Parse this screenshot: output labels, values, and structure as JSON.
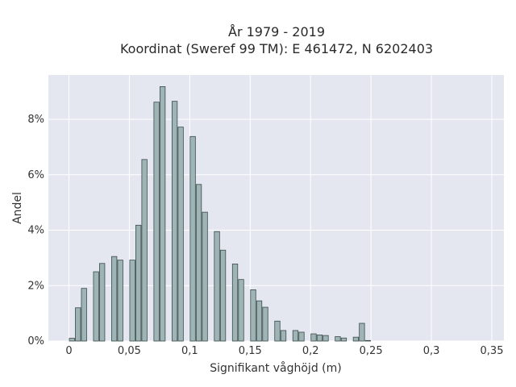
{
  "chart_data": {
    "type": "bar",
    "title": "År 1979 - 2019",
    "subtitle": "Koordinat (Sweref 99 TM): E 461472, N 6202403",
    "xlabel": "Signifikant våghöjd (m)",
    "ylabel": "Andel",
    "xlim": [
      -0.017,
      0.36
    ],
    "ylim": [
      0,
      9.6
    ],
    "grid": true,
    "bin_width": 0.005,
    "x_ticks": [
      {
        "value": 0,
        "label": "0"
      },
      {
        "value": 0.05,
        "label": "0,05"
      },
      {
        "value": 0.1,
        "label": "0,1"
      },
      {
        "value": 0.15,
        "label": "0,15"
      },
      {
        "value": 0.2,
        "label": "0,2"
      },
      {
        "value": 0.25,
        "label": "0,25"
      },
      {
        "value": 0.3,
        "label": "0,3"
      },
      {
        "value": 0.35,
        "label": "0,35"
      }
    ],
    "y_ticks": [
      {
        "value": 0,
        "label": "0%"
      },
      {
        "value": 2,
        "label": "2%"
      },
      {
        "value": 4,
        "label": "4%"
      },
      {
        "value": 6,
        "label": "6%"
      },
      {
        "value": 8,
        "label": "8%"
      }
    ],
    "bins": [
      {
        "x": 0.0,
        "value": 0.1
      },
      {
        "x": 0.005,
        "value": 1.2
      },
      {
        "x": 0.01,
        "value": 1.9
      },
      {
        "x": 0.02,
        "value": 2.5
      },
      {
        "x": 0.025,
        "value": 2.8
      },
      {
        "x": 0.035,
        "value": 3.05
      },
      {
        "x": 0.04,
        "value": 2.92
      },
      {
        "x": 0.05,
        "value": 2.92
      },
      {
        "x": 0.055,
        "value": 4.18
      },
      {
        "x": 0.06,
        "value": 6.55
      },
      {
        "x": 0.07,
        "value": 8.62
      },
      {
        "x": 0.075,
        "value": 9.18
      },
      {
        "x": 0.085,
        "value": 8.65
      },
      {
        "x": 0.09,
        "value": 7.72
      },
      {
        "x": 0.1,
        "value": 7.38
      },
      {
        "x": 0.105,
        "value": 5.65
      },
      {
        "x": 0.11,
        "value": 4.65
      },
      {
        "x": 0.12,
        "value": 3.95
      },
      {
        "x": 0.125,
        "value": 3.28
      },
      {
        "x": 0.135,
        "value": 2.78
      },
      {
        "x": 0.14,
        "value": 2.22
      },
      {
        "x": 0.15,
        "value": 1.85
      },
      {
        "x": 0.155,
        "value": 1.45
      },
      {
        "x": 0.16,
        "value": 1.22
      },
      {
        "x": 0.17,
        "value": 0.72
      },
      {
        "x": 0.175,
        "value": 0.38
      },
      {
        "x": 0.185,
        "value": 0.38
      },
      {
        "x": 0.19,
        "value": 0.32
      },
      {
        "x": 0.2,
        "value": 0.26
      },
      {
        "x": 0.205,
        "value": 0.22
      },
      {
        "x": 0.21,
        "value": 0.2
      },
      {
        "x": 0.22,
        "value": 0.16
      },
      {
        "x": 0.225,
        "value": 0.11
      },
      {
        "x": 0.235,
        "value": 0.14
      },
      {
        "x": 0.24,
        "value": 0.64
      },
      {
        "x": 0.245,
        "value": 0.02
      }
    ],
    "colors": {
      "plot_background": "#e5e7f0",
      "grid": "#ffffff",
      "bar_fill": "#9fb4b4",
      "bar_stroke": "#3a4a4a"
    }
  }
}
